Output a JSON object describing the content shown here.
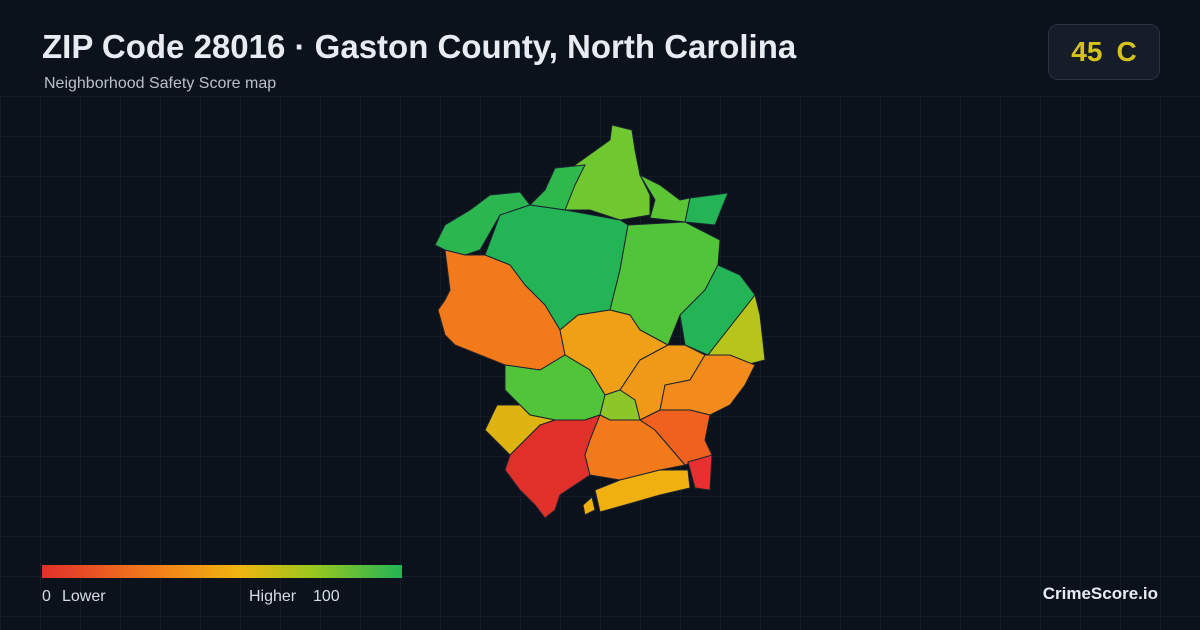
{
  "header": {
    "title": "ZIP Code 28016 · Gaston County, North Carolina",
    "subtitle": "Neighborhood Safety Score map"
  },
  "score": {
    "value": 45,
    "grade": "C"
  },
  "legend": {
    "min": 0,
    "min_label": "Lower",
    "max_label": "Higher",
    "max": 100
  },
  "brand": "CrimeScore.io"
}
